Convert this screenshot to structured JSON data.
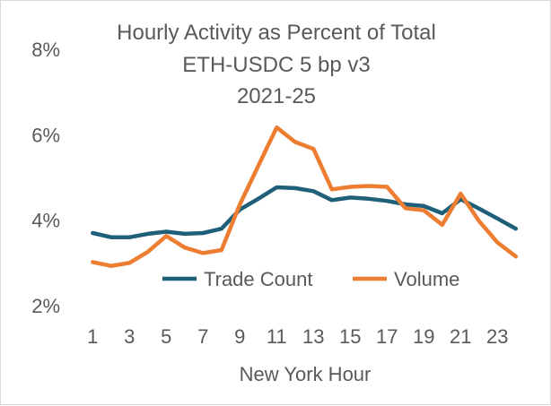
{
  "chart_data": {
    "type": "line",
    "title": [
      "Hourly Activity as Percent of Total",
      "ETH-USDC 5 bp v3",
      "2021-25"
    ],
    "xlabel": "New York Hour",
    "ylabel": "",
    "x": [
      1,
      2,
      3,
      4,
      5,
      6,
      7,
      8,
      9,
      10,
      11,
      12,
      13,
      14,
      15,
      16,
      17,
      18,
      19,
      20,
      21,
      22,
      23,
      24
    ],
    "x_tick_labels": [
      "1",
      "3",
      "5",
      "7",
      "9",
      "11",
      "13",
      "15",
      "17",
      "19",
      "21",
      "23"
    ],
    "y_tick_labels": [
      "2%",
      "4%",
      "6%",
      "8%"
    ],
    "y_ticks": [
      2,
      4,
      6,
      8
    ],
    "ylim": [
      2,
      8
    ],
    "xlim": [
      0.5,
      24.5
    ],
    "grid": false,
    "legend_position": "bottom-center",
    "series": [
      {
        "name": "Trade Count",
        "color": "#1f5f7a",
        "values": [
          3.7,
          3.6,
          3.6,
          3.68,
          3.73,
          3.68,
          3.7,
          3.8,
          4.25,
          4.5,
          4.77,
          4.75,
          4.68,
          4.47,
          4.53,
          4.5,
          4.45,
          4.37,
          4.33,
          4.16,
          4.49,
          4.27,
          4.04,
          3.8
        ]
      },
      {
        "name": "Volume",
        "color": "#ed7d31",
        "values": [
          3.02,
          2.93,
          3.0,
          3.26,
          3.63,
          3.36,
          3.23,
          3.3,
          4.37,
          5.27,
          6.17,
          5.83,
          5.67,
          4.72,
          4.78,
          4.8,
          4.78,
          4.28,
          4.23,
          3.89,
          4.62,
          3.98,
          3.48,
          3.15
        ]
      }
    ]
  }
}
